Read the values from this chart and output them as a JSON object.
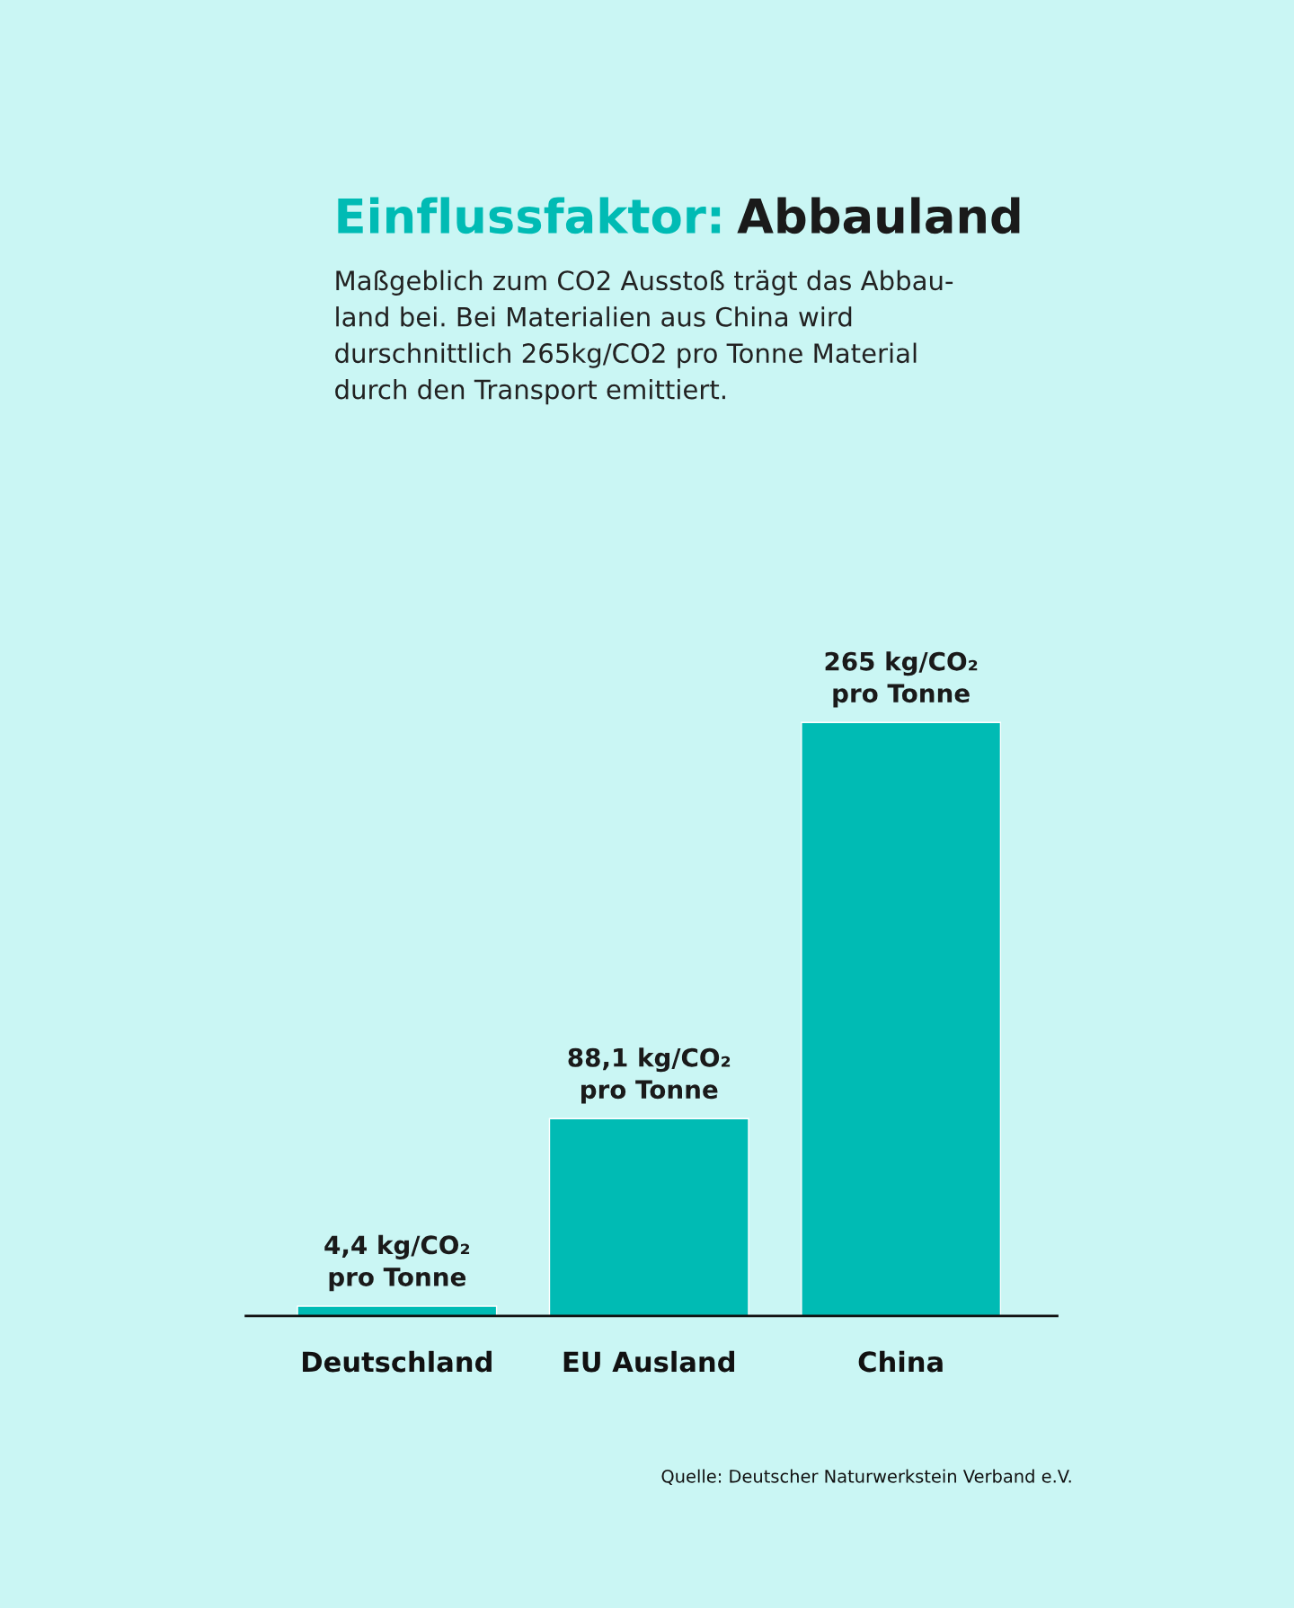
{
  "chart_data": {
    "type": "bar",
    "title": "Einflussfaktor: Abbauland",
    "subtitle": "Maßgeblich zum CO2 Ausstoß trägt das Abbau-\nland bei. Bei Materialien aus China wird\ndurschnittlich 265kg/CO2 pro Tonne Material\ndurch den Transport emittiert.",
    "categories": [
      "Deutschland",
      "EU Ausland",
      "China"
    ],
    "values": [
      4.4,
      88.1,
      265
    ],
    "value_labels": [
      "4,4 kg/CO₂\npro Tonne",
      "88,1 kg/CO₂\npro Tonne",
      "265 kg/CO₂\npro Tonne"
    ],
    "color": "#00bbb4",
    "annotations": [
      "Quelle: Deutscher Naturwerkstein Verband e.V."
    ],
    "grid": false,
    "legend": false
  }
}
